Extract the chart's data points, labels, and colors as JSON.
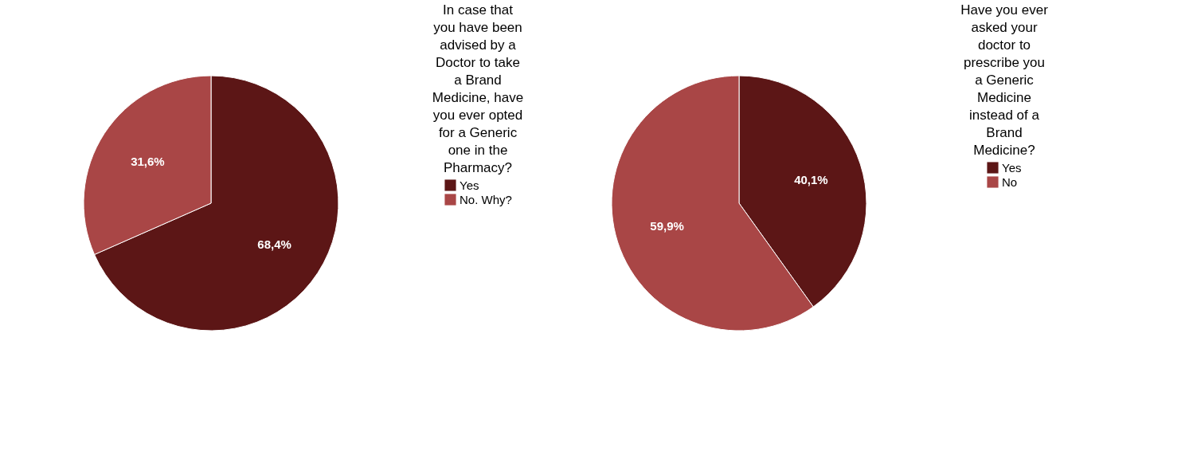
{
  "chart_data": [
    {
      "type": "pie",
      "legend_title": "In case that you have been advised by a Doctor to take a Brand Medicine, have you ever opted for a Generic one in the Pharmacy?",
      "categories": [
        "Yes",
        "No. Why?"
      ],
      "values": [
        68.4,
        31.6
      ],
      "colors": [
        "#5c1616",
        "#a94646"
      ],
      "value_labels": [
        "68,4%",
        "31,6%"
      ],
      "legend": "right"
    },
    {
      "type": "pie",
      "legend_title": "Have you ever asked your doctor to prescribe you a Generic Medicine instead of a Brand Medicine?",
      "categories": [
        "Yes",
        "No"
      ],
      "values": [
        40.1,
        59.9
      ],
      "colors": [
        "#5c1616",
        "#a94646"
      ],
      "value_labels": [
        "40,1%",
        "59,9%"
      ],
      "legend": "right"
    }
  ]
}
